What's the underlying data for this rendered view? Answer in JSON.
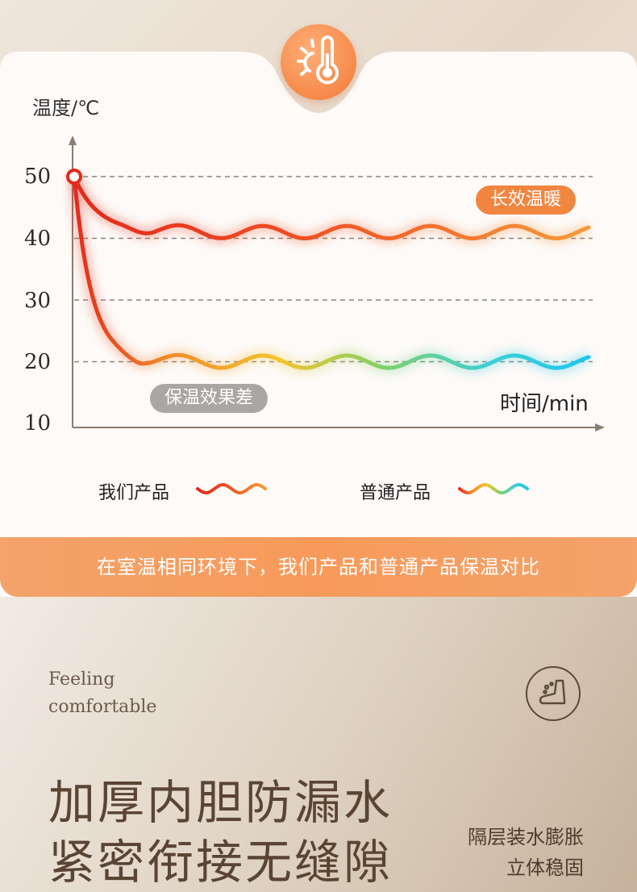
{
  "chart_data": {
    "type": "line",
    "ylabel": "温度/℃",
    "xlabel": "时间/min",
    "ylim": [
      10,
      50
    ],
    "yticks": [
      "50",
      "40",
      "30",
      "20",
      "10"
    ],
    "grid": true,
    "series": [
      {
        "name": "我们产品",
        "start": 50,
        "steady": 41,
        "oscillation": 1,
        "color_start": "#e32a1b",
        "color_end": "#f59a3a"
      },
      {
        "name": "普通产品",
        "start": 50,
        "steady": 20,
        "oscillation": 1,
        "color_start": "#e32a1b",
        "color_end": "#1fc6ef"
      }
    ],
    "annotations": {
      "warm": "长效温暖",
      "poor": "保温效果差"
    }
  },
  "legend": {
    "ours": "我们产品",
    "normal": "普通产品"
  },
  "banner_text": "在室温相同环境下，我们产品和普通产品保温对比",
  "feeling_line1": "Feeling",
  "feeling_line2": "comfortable",
  "headline_line1": "加厚内胆防漏水",
  "headline_line2": "紧密衔接无缝隙",
  "sub_line1": "隔层装水膨胀",
  "sub_line2": "立体稳固",
  "icons": {
    "top": "thermometer-sun-icon",
    "bottom": "shoe-icon"
  },
  "colors": {
    "accent": "#f08640",
    "banner": "#f79a5a",
    "headline": "#5a4434"
  }
}
